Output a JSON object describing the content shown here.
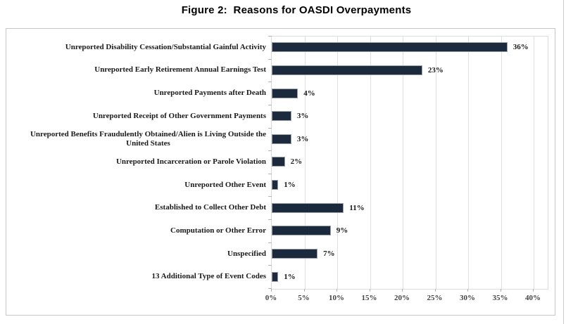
{
  "figure": {
    "title": "Figure 2:  Reasons for OASDI Overpayments"
  },
  "chart_data": {
    "type": "bar",
    "orientation": "horizontal",
    "title": "Figure 2:  Reasons for OASDI Overpayments",
    "categories": [
      "Unreported Disability Cessation/Substantial Gainful Activity",
      "Unreported Early Retirement Annual Earnings Test",
      "Unreported Payments after Death",
      "Unreported Receipt of Other Government Payments",
      "Unreported Benefits Fraudulently Obtained/Alien is Living Outside the\nUnited States",
      "Unreported Incarceration or Parole Violation",
      "Unreported Other Event",
      "Established to Collect Other Debt",
      "Computation or Other Error",
      "Unspecified",
      "13 Additional Type of Event Codes"
    ],
    "values": [
      36,
      23,
      4,
      3,
      3,
      2,
      1,
      11,
      9,
      7,
      1
    ],
    "value_labels": [
      "36%",
      "23%",
      "4%",
      "3%",
      "3%",
      "2%",
      "1%",
      "11%",
      "9%",
      "7%",
      "1%"
    ],
    "xlabel": "",
    "ylabel": "",
    "xlim": [
      0,
      40
    ],
    "x_axis": {
      "min": 0,
      "max": 40,
      "step": 5,
      "ticks": [
        "0%",
        "5%",
        "10%",
        "15%",
        "20%",
        "25%",
        "30%",
        "35%",
        "40%"
      ]
    },
    "grid": "vertical",
    "legend": "none",
    "bar_color": "#1c2a3e"
  },
  "colors": {
    "bar_fill": "#1c2a3e",
    "bar_border": "#97a0aa",
    "grid_line": "#dfdfdf",
    "frame_border": "#c6c6c6",
    "tick_mark": "#b3b3b3",
    "label_text": "#1a1a1a",
    "tick_text": "#444444"
  }
}
